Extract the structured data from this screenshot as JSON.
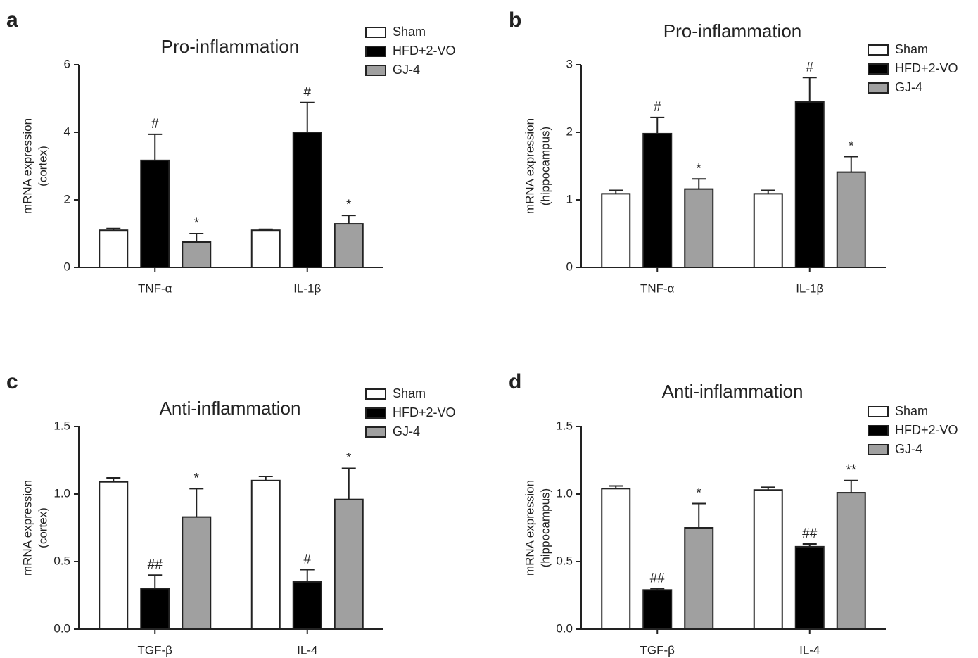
{
  "chart_data": [
    {
      "type": "bar",
      "panel": "a",
      "title": "Pro-inflammation",
      "ylabel": [
        "mRNA expression",
        "(cortex)"
      ],
      "categories": [
        "TNF-α",
        "IL-1β"
      ],
      "series": [
        {
          "name": "Sham",
          "color": "#ffffff",
          "values": [
            1.1,
            1.1
          ],
          "errors": [
            0.05,
            0.03
          ]
        },
        {
          "name": "HFD+2-VO",
          "color": "#000000",
          "values": [
            3.17,
            4.0
          ],
          "errors": [
            0.77,
            0.88
          ],
          "annotations": [
            "#",
            "#"
          ]
        },
        {
          "name": "GJ-4",
          "color": "#a0a0a0",
          "values": [
            0.75,
            1.29
          ],
          "errors": [
            0.25,
            0.25
          ],
          "annotations": [
            "*",
            "*"
          ]
        }
      ],
      "ylim": [
        0,
        6
      ],
      "yticks": [
        0,
        2,
        4,
        6
      ],
      "legend": "upper right"
    },
    {
      "type": "bar",
      "panel": "b",
      "title": "Pro-inflammation",
      "ylabel": [
        "mRNA expression",
        "(hippocampus)"
      ],
      "categories": [
        "TNF-α",
        "IL-1β"
      ],
      "series": [
        {
          "name": "Sham",
          "color": "#ffffff",
          "values": [
            1.09,
            1.09
          ],
          "errors": [
            0.05,
            0.05
          ]
        },
        {
          "name": "HFD+2-VO",
          "color": "#000000",
          "values": [
            1.98,
            2.45
          ],
          "errors": [
            0.24,
            0.36
          ],
          "annotations": [
            "#",
            "#"
          ]
        },
        {
          "name": "GJ-4",
          "color": "#a0a0a0",
          "values": [
            1.16,
            1.41
          ],
          "errors": [
            0.15,
            0.23
          ],
          "annotations": [
            "*",
            "*"
          ]
        }
      ],
      "ylim": [
        0,
        3
      ],
      "yticks": [
        0,
        1,
        2,
        3
      ],
      "legend": "upper right"
    },
    {
      "type": "bar",
      "panel": "c",
      "title": "Anti-inflammation",
      "ylabel": [
        "mRNA expression",
        "(cortex)"
      ],
      "categories": [
        "TGF-β",
        "IL-4"
      ],
      "series": [
        {
          "name": "Sham",
          "color": "#ffffff",
          "values": [
            1.09,
            1.1
          ],
          "errors": [
            0.03,
            0.03
          ]
        },
        {
          "name": "HFD+2-VO",
          "color": "#000000",
          "values": [
            0.3,
            0.35
          ],
          "errors": [
            0.1,
            0.09
          ],
          "annotations": [
            "##",
            "#"
          ]
        },
        {
          "name": "GJ-4",
          "color": "#a0a0a0",
          "values": [
            0.83,
            0.96
          ],
          "errors": [
            0.21,
            0.23
          ],
          "annotations": [
            "*",
            "*"
          ]
        }
      ],
      "ylim": [
        0,
        1.5
      ],
      "yticks": [
        {
          "value": 0,
          "label": "0.0"
        },
        0.5,
        {
          "value": 1,
          "label": "1.0"
        },
        1.5
      ],
      "legend": "upper right"
    },
    {
      "type": "bar",
      "panel": "d",
      "title": "Anti-inflammation",
      "ylabel": [
        "mRNA expression",
        "(hippocampus)"
      ],
      "categories": [
        "TGF-β",
        "IL-4"
      ],
      "series": [
        {
          "name": "Sham",
          "color": "#ffffff",
          "values": [
            1.04,
            1.03
          ],
          "errors": [
            0.02,
            0.02
          ]
        },
        {
          "name": "HFD+2-VO",
          "color": "#000000",
          "values": [
            0.29,
            0.61
          ],
          "errors": [
            0.01,
            0.02
          ],
          "annotations": [
            "##",
            "##"
          ]
        },
        {
          "name": "GJ-4",
          "color": "#a0a0a0",
          "values": [
            0.75,
            1.01
          ],
          "errors": [
            0.18,
            0.09
          ],
          "annotations": [
            "*",
            "**"
          ]
        }
      ],
      "ylim": [
        0,
        1.5
      ],
      "yticks": [
        {
          "value": 0,
          "label": "0.0"
        },
        0.5,
        {
          "value": 1,
          "label": "1.0"
        },
        1.5
      ],
      "legend": "upper right"
    }
  ]
}
